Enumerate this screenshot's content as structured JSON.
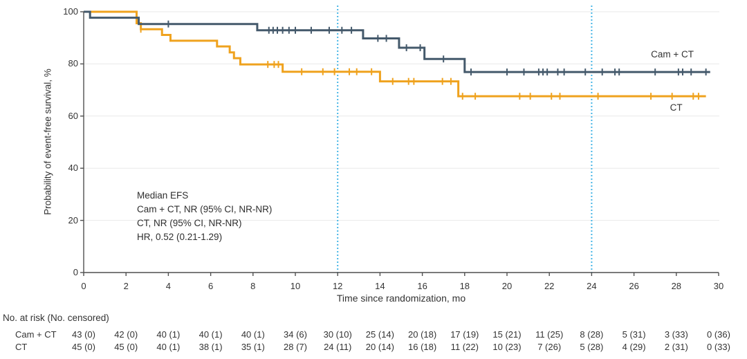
{
  "chart_data": {
    "type": "line",
    "subtype": "kaplan-meier-step",
    "title": "",
    "xlabel": "Time since randomization, mo",
    "ylabel": "Probability of event-free survival, %",
    "xlim": [
      0,
      30
    ],
    "ylim": [
      0,
      100
    ],
    "x_ticks": [
      0,
      2,
      4,
      6,
      8,
      10,
      12,
      14,
      16,
      18,
      20,
      22,
      24,
      26,
      28,
      30
    ],
    "y_ticks": [
      0,
      20,
      40,
      60,
      80,
      100
    ],
    "grid_y_values": [
      20,
      40,
      60,
      80,
      100
    ],
    "reference_lines_x": [
      12,
      24
    ],
    "legend_position": "labels-at-line-end",
    "series": [
      {
        "name": "CT",
        "color": "#EFA21E",
        "label_text": "CT",
        "label_x_mo": 27.7,
        "label_y_pct": 65.3,
        "steps": [
          [
            0,
            100
          ],
          [
            2.5,
            95.6
          ],
          [
            2.7,
            93.3
          ],
          [
            3.7,
            91.1
          ],
          [
            4.1,
            88.9
          ],
          [
            6.3,
            86.7
          ],
          [
            6.9,
            84.4
          ],
          [
            7.1,
            82.2
          ],
          [
            7.4,
            79.8
          ],
          [
            9.4,
            77.0
          ],
          [
            14.0,
            73.3
          ],
          [
            17.7,
            67.6
          ]
        ],
        "end_mo": 29.4,
        "censor_times_mo": [
          2.7,
          8.7,
          9.0,
          9.2,
          10.3,
          11.3,
          11.85,
          12.55,
          12.9,
          13.6,
          14.6,
          15.35,
          15.6,
          16.95,
          17.35,
          17.9,
          18.5,
          20.6,
          21.1,
          22.1,
          22.5,
          24.3,
          26.8,
          27.8,
          28.8,
          29.05
        ]
      },
      {
        "name": "Cam + CT",
        "color": "#44596B",
        "label_text": "Cam + CT",
        "label_x_mo": 26.8,
        "label_y_pct": 85.7,
        "steps": [
          [
            0,
            100
          ],
          [
            0.3,
            97.7
          ],
          [
            2.6,
            95.3
          ],
          [
            8.2,
            92.9
          ],
          [
            13.2,
            89.8
          ],
          [
            14.9,
            86.2
          ],
          [
            16.1,
            81.9
          ],
          [
            18.0,
            76.9
          ]
        ],
        "end_mo": 29.6,
        "censor_times_mo": [
          4.0,
          8.75,
          8.95,
          9.15,
          9.4,
          9.7,
          10.0,
          10.75,
          11.6,
          12.2,
          12.65,
          13.9,
          14.3,
          15.25,
          15.9,
          17.0,
          18.3,
          20.0,
          20.8,
          21.5,
          21.7,
          21.9,
          22.4,
          22.7,
          23.7,
          24.5,
          25.1,
          25.3,
          27.0,
          28.1,
          28.3,
          28.7,
          29.4
        ]
      }
    ],
    "annotation": {
      "line1": "Median EFS",
      "line2": "Cam + CT, NR (95% CI, NR-NR)",
      "line3": "CT, NR (95% CI, NR-NR)",
      "line4": "HR, 0.52 (0.21-1.29)"
    },
    "risk_table": {
      "header": "No. at risk (No. censored)",
      "times": [
        0,
        2,
        4,
        6,
        8,
        10,
        12,
        14,
        16,
        18,
        20,
        22,
        24,
        26,
        28,
        30
      ],
      "rows": [
        {
          "label": "Cam + CT",
          "values": [
            "43 (0)",
            "42 (0)",
            "40 (1)",
            "40 (1)",
            "40 (1)",
            "34 (6)",
            "30 (10)",
            "25 (14)",
            "20 (18)",
            "17 (19)",
            "15 (21)",
            "11 (25)",
            "8 (28)",
            "5 (31)",
            "3 (33)",
            "0 (36)"
          ]
        },
        {
          "label": "CT",
          "values": [
            "45 (0)",
            "45 (0)",
            "40 (1)",
            "38 (1)",
            "35 (1)",
            "28 (7)",
            "24 (11)",
            "20 (14)",
            "16 (18)",
            "11 (22)",
            "10 (23)",
            "7 (26)",
            "5 (28)",
            "4 (29)",
            "2 (31)",
            "0 (33)"
          ]
        }
      ]
    },
    "colors": {
      "axis": "#4F4F4F",
      "text": "#333333",
      "grid": "#E9E9E9",
      "reference_line": "#44B5E6"
    }
  }
}
